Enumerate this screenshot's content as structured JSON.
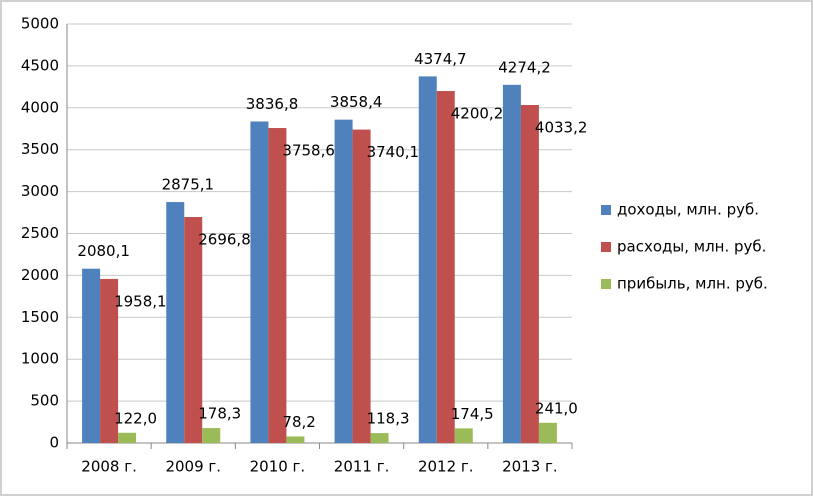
{
  "chart_data": {
    "type": "bar",
    "categories": [
      "2008 г.",
      "2009 г.",
      "2010 г.",
      "2011 г.",
      "2012 г.",
      "2013 г."
    ],
    "series": [
      {
        "name": "доходы, млн. руб.",
        "color": "#4f81bd",
        "values": [
          2080.1,
          2875.1,
          3836.8,
          3858.4,
          4374.7,
          4274.2
        ],
        "value_labels": [
          "2080,1",
          "2875,1",
          "3836,8",
          "3858,4",
          "4374,7",
          "4274,2"
        ]
      },
      {
        "name": "расходы, млн. руб.",
        "color": "#c0504d",
        "values": [
          1958.1,
          2696.8,
          3758.6,
          3740.1,
          4200.2,
          4033.2
        ],
        "value_labels": [
          "1958,1",
          "2696,8",
          "3758,6",
          "3740,1",
          "4200,2",
          "4033,2"
        ]
      },
      {
        "name": "прибыль, млн. руб.",
        "color": "#9bbb59",
        "values": [
          122.0,
          178.3,
          78.2,
          118.3,
          174.5,
          241.0
        ],
        "value_labels": [
          "122,0",
          "178,3",
          "78,2",
          "118,3",
          "174,5",
          "241,0"
        ]
      }
    ],
    "ylim": [
      0,
      5000
    ],
    "yticks": [
      0,
      500,
      1000,
      1500,
      2000,
      2500,
      3000,
      3500,
      4000,
      4500,
      5000
    ],
    "grid": true,
    "legend": "right"
  }
}
